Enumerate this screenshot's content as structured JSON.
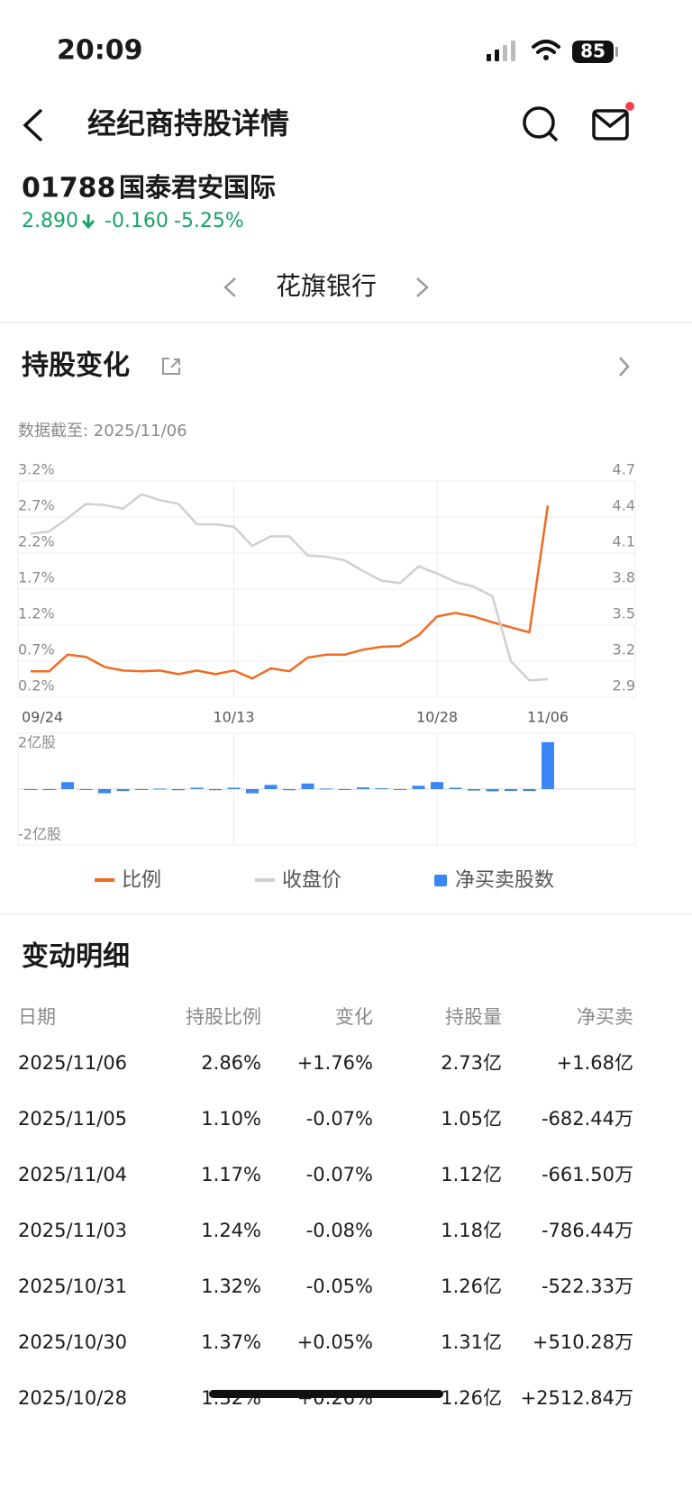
{
  "status": {
    "time": "20:09",
    "battery": "85"
  },
  "header": {
    "title": "经纪商持股详情"
  },
  "stock": {
    "code": "01788",
    "name": "国泰君安国际",
    "price": "2.890",
    "change": "-0.160",
    "change_pct": "-5.25%"
  },
  "broker": "花旗银行",
  "section_title": "持股变化",
  "as_of": "数据截至: 2025/11/06",
  "chart": {
    "type": "line",
    "categories": [
      "09/24",
      null,
      null,
      null,
      null,
      null,
      null,
      null,
      null,
      null,
      null,
      "10/13",
      null,
      null,
      null,
      null,
      null,
      null,
      null,
      null,
      null,
      null,
      "10/28",
      null,
      null,
      null,
      null,
      null,
      "11/06"
    ],
    "ylim": [
      0.2,
      3.2
    ],
    "yticks": [
      {
        "value": 0.2,
        "label": "0.2%"
      },
      {
        "value": 0.7,
        "label": "0.7%"
      },
      {
        "value": 1.2,
        "label": "1.2%"
      },
      {
        "value": 1.7,
        "label": "1.7%"
      },
      {
        "value": 2.2,
        "label": "2.2%"
      },
      {
        "value": 2.7,
        "label": "2.7%"
      },
      {
        "value": 3.2,
        "label": "3.2%"
      }
    ],
    "y2lim": [
      2.9,
      4.7
    ],
    "y2ticks": [
      2.9,
      3.2,
      3.5,
      3.8,
      4.1,
      4.4,
      4.7
    ],
    "y3lim": [
      -2,
      2
    ],
    "y3ticks": [
      {
        "value": 2,
        "label": "2亿股"
      },
      {
        "value": -2,
        "label": "-2亿股"
      }
    ],
    "series": [
      {
        "name": "比例",
        "color": "#f26a21",
        "values": [
          0.56,
          0.56,
          0.79,
          0.76,
          0.62,
          0.57,
          0.56,
          0.57,
          0.52,
          0.57,
          0.52,
          0.57,
          0.46,
          0.6,
          0.56,
          0.75,
          0.79,
          0.79,
          0.86,
          0.9,
          0.91,
          1.06,
          1.32,
          1.37,
          1.32,
          1.24,
          1.17,
          1.1,
          2.86
        ]
      },
      {
        "name": "收盘价",
        "color": "#d0d0d0",
        "axis": "y2",
        "values": [
          4.26,
          4.28,
          4.39,
          4.51,
          4.5,
          4.47,
          4.59,
          4.54,
          4.51,
          4.34,
          4.34,
          4.32,
          4.16,
          4.24,
          4.24,
          4.08,
          4.07,
          4.04,
          3.95,
          3.87,
          3.85,
          3.99,
          3.93,
          3.86,
          3.82,
          3.74,
          3.2,
          3.04,
          3.05
        ]
      },
      {
        "name": "净买卖股数",
        "color": "#3a86f5",
        "type": "bar",
        "axis": "y3",
        "values": [
          -0.02,
          0,
          0.25,
          -0.02,
          -0.15,
          -0.07,
          -0.03,
          0.02,
          -0.04,
          0.05,
          -0.04,
          0.05,
          -0.15,
          0.15,
          -0.04,
          0.2,
          0.02,
          0,
          0.06,
          0.03,
          0,
          0.12,
          0.2513,
          0.051,
          -0.0522,
          -0.0786,
          -0.0662,
          -0.0682,
          1.68
        ]
      }
    ]
  },
  "detail": {
    "title": "变动明细",
    "columns": [
      "日期",
      "持股比例",
      "变化",
      "持股量",
      "净买卖"
    ],
    "rows": [
      [
        "2025/11/06",
        "2.86%",
        "+1.76%",
        "2.73亿",
        "+1.68亿"
      ],
      [
        "2025/11/05",
        "1.10%",
        "-0.07%",
        "1.05亿",
        "-682.44万"
      ],
      [
        "2025/11/04",
        "1.17%",
        "-0.07%",
        "1.12亿",
        "-661.50万"
      ],
      [
        "2025/11/03",
        "1.24%",
        "-0.08%",
        "1.18亿",
        "-786.44万"
      ],
      [
        "2025/10/31",
        "1.32%",
        "-0.05%",
        "1.26亿",
        "-522.33万"
      ],
      [
        "2025/10/30",
        "1.37%",
        "+0.05%",
        "1.31亿",
        "+510.28万"
      ],
      [
        "2025/10/28",
        "1.32%",
        "+0.26%",
        "1.26亿",
        "+2512.84万"
      ]
    ]
  }
}
